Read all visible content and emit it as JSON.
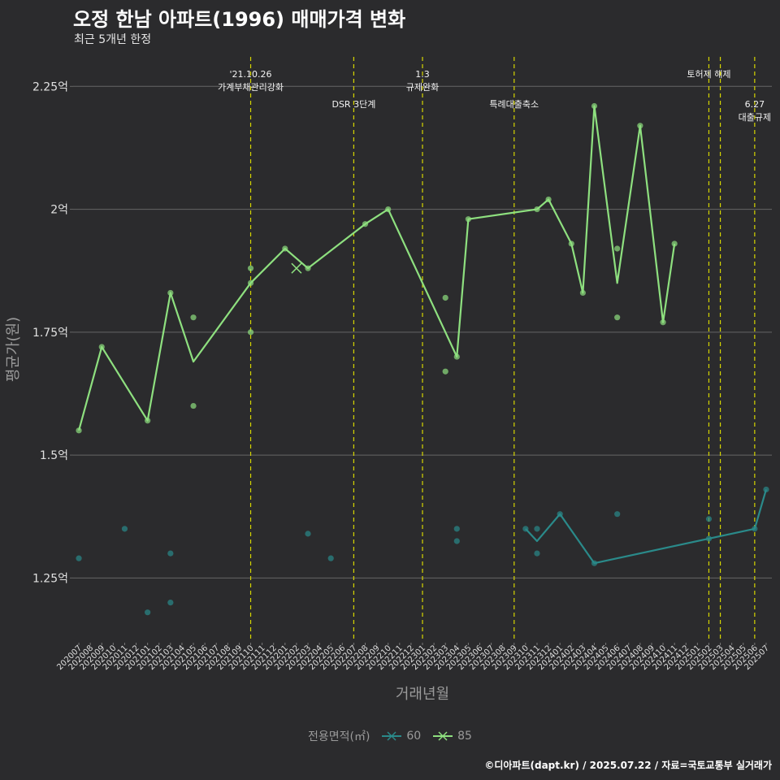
{
  "header": {
    "title": "오정 한남 아파트(1996) 매매가격 변화",
    "subtitle": "최근 5개년 한정"
  },
  "caption": "©디아파트(dapt.kr) / 2025.07.22 / 자료=국토교통부 실거래가",
  "legend": {
    "title": "전용면적(㎡)",
    "items": [
      {
        "label": "60",
        "color": "#2a8a8a"
      },
      {
        "label": "85",
        "color": "#8ee07f"
      }
    ]
  },
  "chart_data": {
    "type": "line",
    "title": "오정 한남 아파트(1996) 매매가격 변화",
    "xlabel": "거래년월",
    "ylabel": "평균가(원)",
    "ylim": [
      1.12,
      2.31
    ],
    "yticks": [
      {
        "value": 1.25,
        "label": "1.25억"
      },
      {
        "value": 1.5,
        "label": "1.5억"
      },
      {
        "value": 1.75,
        "label": "1.75억"
      },
      {
        "value": 2.0,
        "label": "2억"
      },
      {
        "value": 2.25,
        "label": "2.25억"
      }
    ],
    "categories": [
      "202007",
      "202008",
      "202009",
      "202010",
      "202011",
      "202012",
      "202101",
      "202102",
      "202103",
      "202104",
      "202105",
      "202106",
      "202107",
      "202108",
      "202109",
      "202110",
      "202111",
      "202112",
      "202201",
      "202202",
      "202203",
      "202204",
      "202205",
      "202206",
      "202207",
      "202208",
      "202209",
      "202210",
      "202211",
      "202212",
      "202301",
      "202302",
      "202303",
      "202304",
      "202305",
      "202306",
      "202307",
      "202308",
      "202309",
      "202310",
      "202311",
      "202312",
      "202401",
      "202402",
      "202403",
      "202404",
      "202405",
      "202406",
      "202407",
      "202408",
      "202409",
      "202410",
      "202411",
      "202412",
      "202501",
      "202502",
      "202503",
      "202504",
      "202505",
      "202506",
      "202507"
    ],
    "series": [
      {
        "name": "60",
        "color": "#2a8a8a",
        "line": [
          [
            "202310",
            1.35
          ],
          [
            "202311",
            1.325
          ],
          [
            "202401",
            1.38
          ],
          [
            "202404",
            1.28
          ],
          [
            "202506",
            1.35
          ],
          [
            "202507",
            1.43
          ]
        ],
        "points": [
          [
            "202007",
            1.29
          ],
          [
            "202011",
            1.35
          ],
          [
            "202101",
            1.18
          ],
          [
            "202103",
            1.3
          ],
          [
            "202103",
            1.2
          ],
          [
            "202203",
            1.34
          ],
          [
            "202205",
            1.29
          ],
          [
            "202304",
            1.35
          ],
          [
            "202304",
            1.325
          ],
          [
            "202310",
            1.35
          ],
          [
            "202311",
            1.35
          ],
          [
            "202311",
            1.3
          ],
          [
            "202401",
            1.38
          ],
          [
            "202404",
            1.28
          ],
          [
            "202406",
            1.38
          ],
          [
            "202502",
            1.37
          ],
          [
            "202502",
            1.33
          ],
          [
            "202506",
            1.35
          ],
          [
            "202507",
            1.43
          ]
        ]
      },
      {
        "name": "85",
        "color": "#8ee07f",
        "line": [
          [
            "202007",
            1.55
          ],
          [
            "202009",
            1.72
          ],
          [
            "202101",
            1.57
          ],
          [
            "202103",
            1.83
          ],
          [
            "202105",
            1.69
          ],
          [
            "202110",
            1.85
          ],
          [
            "202201",
            1.92
          ],
          [
            "202203",
            1.88
          ],
          [
            "202208",
            1.97
          ],
          [
            "202210",
            2.0
          ],
          [
            "202304",
            1.7
          ],
          [
            "202305",
            1.98
          ],
          [
            "202311",
            2.0
          ],
          [
            "202312",
            2.02
          ],
          [
            "202402",
            1.93
          ],
          [
            "202403",
            1.83
          ],
          [
            "202404",
            2.21
          ],
          [
            "202406",
            1.85
          ],
          [
            "202408",
            2.17
          ],
          [
            "202410",
            1.77
          ],
          [
            "202411",
            1.93
          ]
        ],
        "points": [
          [
            "202007",
            1.55
          ],
          [
            "202009",
            1.72
          ],
          [
            "202101",
            1.57
          ],
          [
            "202103",
            1.83
          ],
          [
            "202105",
            1.78
          ],
          [
            "202105",
            1.6
          ],
          [
            "202110",
            1.88
          ],
          [
            "202110",
            1.85
          ],
          [
            "202110",
            1.75
          ],
          [
            "202201",
            1.92
          ],
          [
            "202203",
            1.88
          ],
          [
            "202208",
            1.97
          ],
          [
            "202210",
            2.0
          ],
          [
            "202303",
            1.82
          ],
          [
            "202303",
            1.67
          ],
          [
            "202304",
            1.7
          ],
          [
            "202305",
            1.98
          ],
          [
            "202311",
            2.0
          ],
          [
            "202312",
            2.02
          ],
          [
            "202402",
            1.93
          ],
          [
            "202403",
            1.83
          ],
          [
            "202404",
            2.21
          ],
          [
            "202406",
            1.92
          ],
          [
            "202406",
            1.78
          ],
          [
            "202408",
            2.17
          ],
          [
            "202410",
            1.77
          ],
          [
            "202411",
            1.93
          ]
        ],
        "cross": [
          [
            "202202",
            1.88
          ]
        ]
      }
    ],
    "events": [
      {
        "month": "202110",
        "lines": [
          "'21.10.26",
          "가계부채관리강화"
        ],
        "level": 0
      },
      {
        "month": "202207",
        "lines": [
          "DSR 3단계"
        ],
        "level": 1
      },
      {
        "month": "202301",
        "lines": [
          "1.3",
          "규제완화"
        ],
        "level": 0
      },
      {
        "month": "202309",
        "lines": [
          "특례대출축소"
        ],
        "level": 1
      },
      {
        "month": "202502",
        "lines": [
          "토허제 해제"
        ],
        "level": 0
      },
      {
        "month": "202503",
        "lines": [],
        "level": 0
      },
      {
        "month": "202506",
        "lines": [
          "6.27",
          "대출규제"
        ],
        "level": 1
      }
    ]
  }
}
